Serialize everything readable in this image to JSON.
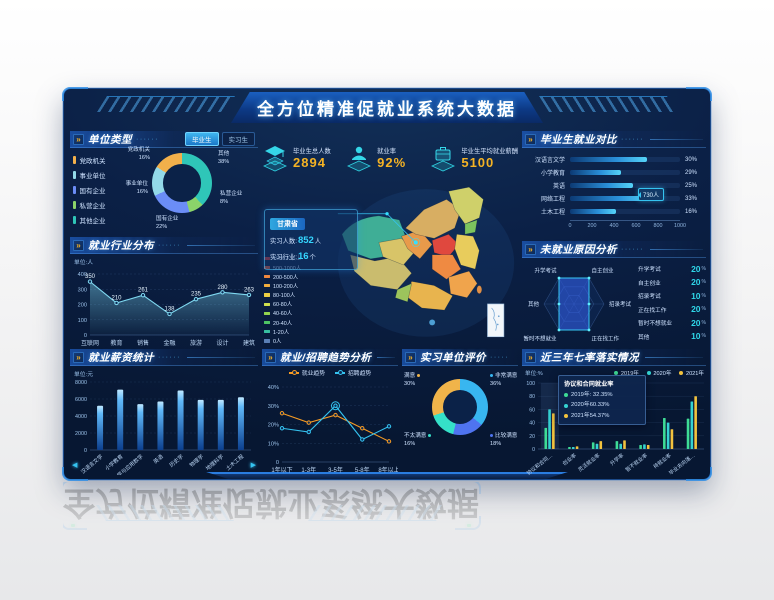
{
  "page": {
    "title": "全方位精准促就业系统大数据"
  },
  "stats": [
    {
      "icon": "graduation-cap",
      "label": "毕业生总人数",
      "value": "2894"
    },
    {
      "icon": "employment-rate-person",
      "label": "就业率",
      "value": "92%"
    },
    {
      "icon": "salary-briefcase",
      "label": "毕业生平均就业薪酬",
      "value": "5100"
    }
  ],
  "panels": {
    "unit_type": {
      "title": "单位类型",
      "tabs": [
        "毕业生",
        "实习生"
      ],
      "active_tab": "毕业生",
      "legend": [
        "党政机关",
        "事业单位",
        "国有企业",
        "私营企业",
        "其他企业"
      ],
      "legend_colors": [
        "#f2b04b",
        "#93d9e8",
        "#6b8df7",
        "#8bd46a",
        "#2fc6b8"
      ]
    },
    "industry": {
      "title": "就业行业分布",
      "unit": "单位:人"
    },
    "salary": {
      "title": "就业薪资统计",
      "unit": "单位:元"
    },
    "trend": {
      "title": "就业/招聘趋势分析"
    },
    "evaluation": {
      "title": "实习单位评价"
    },
    "comparison": {
      "title": "毕业生就业对比",
      "tooltip": "730人"
    },
    "radar": {
      "title": "未就业原因分析",
      "legend": [
        {
          "label": "升学考试",
          "value": "20"
        },
        {
          "label": "自主创业",
          "value": "20"
        },
        {
          "label": "招录考试",
          "value": "10"
        },
        {
          "label": "正在找工作",
          "value": "20"
        },
        {
          "label": "暂时不想就业",
          "value": "20"
        },
        {
          "label": "其他",
          "value": "10"
        }
      ]
    },
    "seven_rates": {
      "title": "近三年七率落实情况",
      "unit": "单位:%",
      "tooltip": {
        "title": "协议和合同就业率",
        "rows": [
          {
            "color": "#3edc96",
            "text": "2019年: 32.35%"
          },
          {
            "color": "#35d2d2",
            "text": "2020年60.33%"
          },
          {
            "color": "#f2c23e",
            "text": "2021年54.37%"
          }
        ]
      }
    }
  },
  "map": {
    "tooltip": {
      "province": "甘肃省",
      "rows": [
        {
          "label": "实习人数:",
          "value": "852",
          "suffix": "人"
        },
        {
          "label": "实习行业:",
          "value": "16",
          "suffix": "个"
        }
      ]
    },
    "legend": [
      {
        "label": "1000人以上",
        "color": "#e23a3a"
      },
      {
        "label": "500-1000人",
        "color": "#ef5f3c"
      },
      {
        "label": "200-500人",
        "color": "#f2883e"
      },
      {
        "label": "100-200人",
        "color": "#f2ae3e"
      },
      {
        "label": "80-100人",
        "color": "#eccf44"
      },
      {
        "label": "60-80人",
        "color": "#cfe04e"
      },
      {
        "label": "40-60人",
        "color": "#93d44e"
      },
      {
        "label": "20-40人",
        "color": "#4ec464"
      },
      {
        "label": "1-20人",
        "color": "#38bfa0"
      },
      {
        "label": "0人",
        "color": "#5a7fb5"
      }
    ]
  },
  "chart_data": [
    {
      "id": "unit_type",
      "type": "pie",
      "categories": [
        "其他",
        "私营企业",
        "国有企业",
        "事业单位",
        "党政机关"
      ],
      "values": [
        38,
        8,
        22,
        16,
        16
      ],
      "colors": [
        "#2fc6b8",
        "#8bd46a",
        "#6b8df7",
        "#93d9e8",
        "#f2b04b"
      ],
      "labels": [
        {
          "text": "党政机关",
          "pct": "16%"
        },
        {
          "text": "其他",
          "pct": "38%"
        },
        {
          "text": "私营企业",
          "pct": "8%"
        },
        {
          "text": "国有企业",
          "pct": "22%"
        },
        {
          "text": "事业单位",
          "pct": "16%"
        }
      ]
    },
    {
      "id": "industry",
      "type": "line",
      "categories": [
        "互联网",
        "教育",
        "销售",
        "金融",
        "旅游",
        "设计",
        "建筑"
      ],
      "values": [
        350,
        210,
        261,
        138,
        235,
        280,
        263
      ],
      "ylim": [
        0,
        400
      ],
      "yticks": [
        0,
        100,
        200,
        300,
        400
      ],
      "line_color": "#7fd8f0",
      "area": true,
      "grid": true
    },
    {
      "id": "salary",
      "type": "bar",
      "categories": [
        "汉语言文学",
        "小学教育",
        "数学与应用数学",
        "英语",
        "历史学",
        "物理学",
        "地理科学",
        "土木工程"
      ],
      "values": [
        5200,
        7100,
        5400,
        5700,
        7000,
        5900,
        5900,
        6200
      ],
      "ylim": [
        0,
        8000
      ],
      "yticks": [
        0,
        2000,
        4000,
        6000,
        8000
      ],
      "grid": true
    },
    {
      "id": "comparison",
      "type": "bar",
      "orientation": "horizontal",
      "categories": [
        "汉语言文学",
        "小学教育",
        "英语",
        "网络工程",
        "土木工程"
      ],
      "values": [
        700,
        460,
        570,
        730,
        420
      ],
      "pct_labels": [
        "30%",
        "29%",
        "25%",
        "33%",
        "16%"
      ],
      "xlim": [
        0,
        1000
      ],
      "xticks": [
        0,
        200,
        400,
        600,
        800,
        1000
      ]
    },
    {
      "id": "radar",
      "type": "radar",
      "categories": [
        "升学考试",
        "自主创业",
        "招录考试",
        "正在找工作",
        "暂时不想就业",
        "其他"
      ],
      "values": [
        20,
        20,
        10,
        20,
        20,
        10
      ],
      "max": 20
    },
    {
      "id": "trend",
      "type": "line",
      "categories": [
        "1年以下",
        "1-3年",
        "3-5年",
        "5-8年",
        "8年以上"
      ],
      "series": [
        {
          "name": "就业趋势",
          "color": "#f59a23",
          "values": [
            26,
            21,
            25,
            18,
            11
          ]
        },
        {
          "name": "招聘趋势",
          "color": "#35c3f0",
          "values": [
            18,
            16,
            30,
            12,
            19
          ]
        }
      ],
      "ylim": [
        0,
        40
      ],
      "ytick_labels": [
        "0",
        "10%",
        "20%",
        "30%",
        "40%"
      ],
      "highlight": {
        "series": 1,
        "index": 2
      },
      "grid": true
    },
    {
      "id": "evaluation",
      "type": "pie",
      "categories": [
        "非常满意",
        "比较满意",
        "不太满意",
        "满意"
      ],
      "values": [
        36,
        18,
        16,
        30
      ],
      "colors": [
        "#38b6f0",
        "#4f74f0",
        "#35e0c8",
        "#f0b44a"
      ],
      "labels": [
        {
          "text": "满意",
          "pct": "30%"
        },
        {
          "text": "非常满意",
          "pct": "36%"
        },
        {
          "text": "比较满意",
          "pct": "18%"
        },
        {
          "text": "不太满意",
          "pct": "16%"
        }
      ],
      "label_colors": [
        "#f0b44a",
        "#38b6f0",
        "#4f74f0",
        "#35e0c8"
      ]
    },
    {
      "id": "seven_rates",
      "type": "bar",
      "grouped": true,
      "categories": [
        "协议和合同…",
        "创业率",
        "灵活就业率",
        "升学率",
        "暂不就业率",
        "待就业率",
        "毕业去向落…"
      ],
      "series": [
        {
          "name": "2019年",
          "color": "#3edc96",
          "values": [
            32,
            3,
            10,
            12,
            6,
            47,
            46
          ]
        },
        {
          "name": "2020年",
          "color": "#35d2d2",
          "values": [
            60,
            3,
            8,
            8,
            7,
            40,
            72
          ]
        },
        {
          "name": "2021年",
          "color": "#f2c23e",
          "values": [
            54,
            4,
            12,
            13,
            6,
            30,
            80
          ]
        }
      ],
      "ylim": [
        0,
        100
      ],
      "yticks": [
        0,
        20,
        40,
        60,
        80,
        100
      ],
      "highlight_group": 0
    }
  ]
}
